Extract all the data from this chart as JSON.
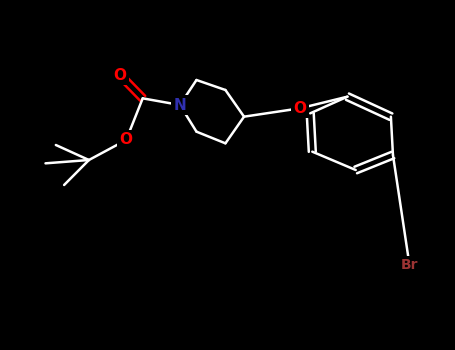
{
  "background_color": "#000000",
  "bond_color": "#ffffff",
  "N_color": "#3030b0",
  "O_color": "#ff0000",
  "Br_color": "#9b3333",
  "bond_width": 1.8,
  "font_size_N": 11,
  "font_size_O": 11,
  "font_size_Br": 10,
  "figsize": [
    4.55,
    3.5
  ],
  "dpi": 100,
  "xlim": [
    0,
    455
  ],
  "ylim": [
    0,
    350
  ]
}
